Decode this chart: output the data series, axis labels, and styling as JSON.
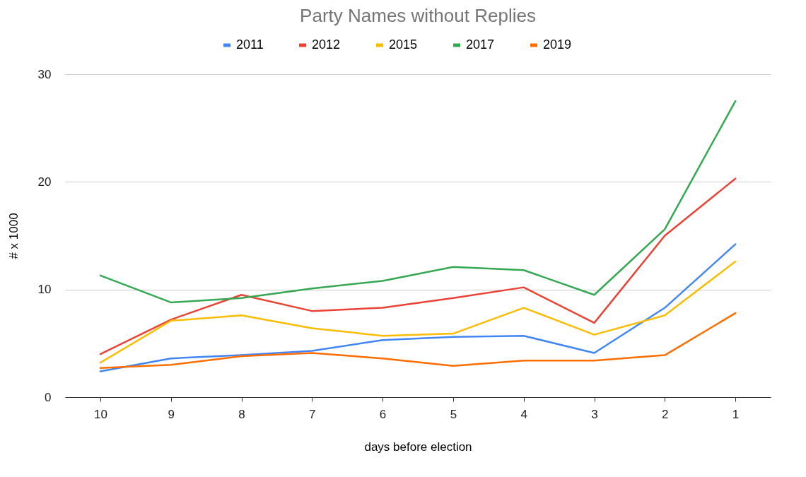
{
  "chart_data": {
    "type": "line",
    "title": "Party Names without Replies",
    "xlabel": "days before election",
    "ylabel": "# x 1000",
    "categories": [
      "10",
      "9",
      "8",
      "7",
      "6",
      "5",
      "4",
      "3",
      "2",
      "1"
    ],
    "series": [
      {
        "name": "2011",
        "color": "#4285f4",
        "values": [
          2.4,
          3.6,
          3.9,
          4.3,
          5.3,
          5.6,
          5.7,
          4.1,
          8.3,
          14.2
        ]
      },
      {
        "name": "2012",
        "color": "#ea4335",
        "values": [
          4.0,
          7.2,
          9.5,
          8.0,
          8.3,
          9.2,
          10.2,
          6.9,
          15.0,
          20.3
        ]
      },
      {
        "name": "2015",
        "color": "#fbbc04",
        "values": [
          3.2,
          7.1,
          7.6,
          6.4,
          5.7,
          5.9,
          8.3,
          5.8,
          7.6,
          12.6
        ]
      },
      {
        "name": "2017",
        "color": "#34a853",
        "values": [
          11.3,
          8.8,
          9.2,
          10.1,
          10.8,
          12.1,
          11.8,
          9.5,
          15.6,
          27.5
        ]
      },
      {
        "name": "2019",
        "color": "#ff6d01",
        "values": [
          2.7,
          3.0,
          3.8,
          4.1,
          3.6,
          2.9,
          3.4,
          3.4,
          3.9,
          7.8
        ]
      }
    ],
    "ylim": [
      0,
      30
    ],
    "yticks": [
      0,
      10,
      20,
      30
    ],
    "grid": "y",
    "legend": "top",
    "marker": "none",
    "line_style": "solid"
  }
}
